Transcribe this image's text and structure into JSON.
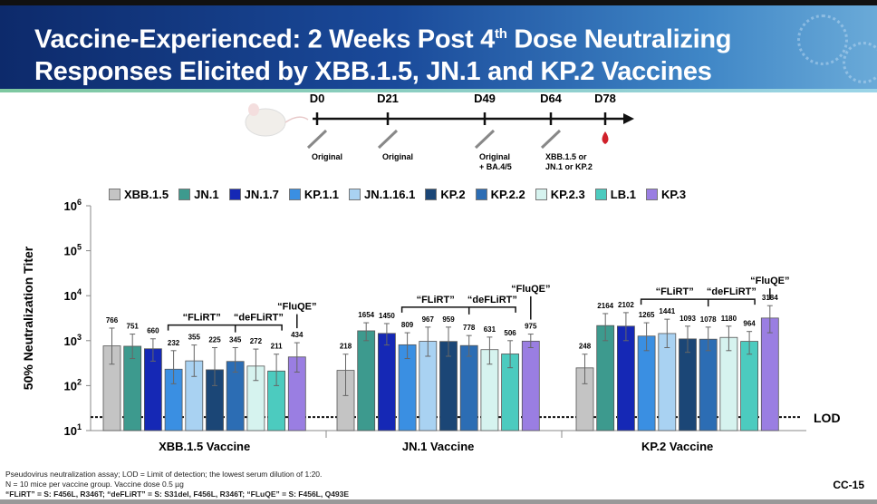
{
  "header": {
    "title_line1_pre": "Vaccine-Experienced: 2 Weeks Post 4",
    "title_sup": "th",
    "title_line1_post": " Dose Neutralizing",
    "title_line2": "Responses Elicited by XBB.1.5, JN.1 and KP.2 Vaccines"
  },
  "timeline": {
    "days": [
      "D0",
      "D21",
      "D49",
      "D64",
      "D78"
    ],
    "doses": [
      "Original",
      "Original",
      "Original\n+ BA.4/5",
      "XBB.1.5 or\nJN.1 or KP.2"
    ]
  },
  "chart_data": {
    "type": "bar",
    "yscale": "log",
    "ylabel": "50% Neutralization Titer",
    "ylim": [
      10,
      1000000
    ],
    "yticks": [
      "10",
      "10",
      "10",
      "10",
      "10",
      "10"
    ],
    "ytick_exponents": [
      "1",
      "2",
      "3",
      "4",
      "5",
      "6"
    ],
    "lod": {
      "value": 20,
      "label": "LOD"
    },
    "legend": [
      "XBB.1.5",
      "JN.1",
      "JN.1.7",
      "KP.1.1",
      "JN.1.16.1",
      "KP.2",
      "KP.2.2",
      "KP.2.3",
      "LB.1",
      "KP.3"
    ],
    "colors": [
      "#c4c4c4",
      "#3d9a8e",
      "#1528b5",
      "#3a8fe2",
      "#a9d2f2",
      "#1b4676",
      "#2c6db4",
      "#d6f3ef",
      "#4ccbbf",
      "#9a7ee2"
    ],
    "groups": [
      {
        "name": "XBB.1.5 Vaccine",
        "values": [
          766,
          751,
          660,
          232,
          355,
          225,
          345,
          272,
          211,
          434
        ],
        "upper": [
          1900,
          1400,
          1100,
          600,
          800,
          700,
          700,
          650,
          500,
          900
        ],
        "lower": [
          300,
          400,
          350,
          110,
          160,
          100,
          200,
          130,
          100,
          200
        ]
      },
      {
        "name": "JN.1 Vaccine",
        "values": [
          218,
          1654,
          1450,
          809,
          967,
          959,
          778,
          631,
          506,
          975
        ],
        "upper": [
          500,
          2500,
          2400,
          1500,
          2000,
          2000,
          1300,
          1200,
          1000,
          1400
        ],
        "lower": [
          60,
          1000,
          800,
          400,
          450,
          450,
          450,
          300,
          250,
          700
        ]
      },
      {
        "name": "KP.2 Vaccine",
        "values": [
          248,
          2164,
          2102,
          1265,
          1441,
          1093,
          1078,
          1180,
          964,
          3184
        ],
        "upper": [
          500,
          4000,
          4200,
          2500,
          3000,
          2100,
          2000,
          2100,
          1600,
          6000
        ],
        "lower": [
          110,
          1000,
          1000,
          600,
          700,
          550,
          600,
          600,
          500,
          1500
        ]
      }
    ],
    "annotations": {
      "flirt": "“FLiRT”",
      "deflirt": "“deFLiRT”",
      "fluqe": "“FluQE”"
    }
  },
  "footnotes": {
    "line1": "Pseudovirus neutralization assay; LOD = Limit of detection; the lowest serum dilution of 1:20.",
    "line2": "N = 10 mice per vaccine group. Vaccine dose 0.5 µg",
    "line3": "“FLiRT” = S: F456L, R346T; “deFLiRT” = S: S31del, F456L, R346T; “FLuQE” = S: F456L, Q493E"
  },
  "slide_number": "CC-15"
}
